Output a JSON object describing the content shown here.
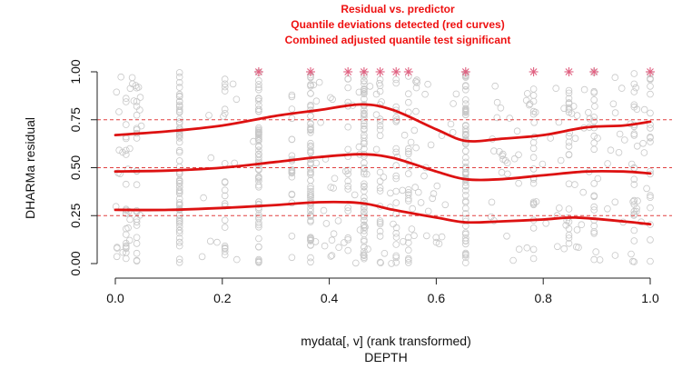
{
  "chart_data": {
    "type": "scatter",
    "title_lines": [
      "Residual vs. predictor",
      "Quantile deviations detected (red curves)",
      "Combined adjusted quantile test significant"
    ],
    "xlabel_lines": [
      "mydata[, v] (rank transformed)",
      "DEPTH"
    ],
    "ylabel": "DHARMa residual",
    "xlim": [
      0,
      1
    ],
    "ylim": [
      0,
      1
    ],
    "x_ticks": [
      "0.0",
      "0.2",
      "0.4",
      "0.6",
      "0.8",
      "1.0"
    ],
    "y_ticks": [
      "0.00",
      "0.25",
      "0.50",
      "0.75",
      "1.00"
    ],
    "reference_lines": [
      0.25,
      0.5,
      0.75
    ],
    "significant_x": [
      0.268,
      0.365,
      0.435,
      0.465,
      0.495,
      0.525,
      0.548,
      0.655,
      0.782,
      0.848,
      0.895,
      1.0
    ],
    "dense_columns_x": [
      0.12,
      0.268,
      0.365,
      0.465,
      0.655
    ],
    "medium_columns_x": [
      0.02,
      0.04,
      0.205,
      0.33,
      0.435,
      0.495,
      0.525,
      0.548,
      0.782,
      0.848,
      0.895,
      0.97,
      1.0
    ],
    "series": [
      {
        "quantile": 0.75,
        "x": [
          0.0,
          0.1,
          0.2,
          0.3,
          0.38,
          0.46,
          0.52,
          0.6,
          0.655,
          0.72,
          0.8,
          0.88,
          0.95,
          1.0
        ],
        "y": [
          0.67,
          0.69,
          0.72,
          0.77,
          0.8,
          0.83,
          0.8,
          0.7,
          0.64,
          0.65,
          0.67,
          0.71,
          0.72,
          0.74
        ]
      },
      {
        "quantile": 0.5,
        "x": [
          0.0,
          0.1,
          0.2,
          0.3,
          0.38,
          0.46,
          0.52,
          0.6,
          0.655,
          0.72,
          0.8,
          0.88,
          0.95,
          1.0
        ],
        "y": [
          0.48,
          0.485,
          0.5,
          0.53,
          0.555,
          0.57,
          0.55,
          0.48,
          0.44,
          0.44,
          0.46,
          0.48,
          0.48,
          0.47
        ]
      },
      {
        "quantile": 0.25,
        "x": [
          0.0,
          0.1,
          0.2,
          0.3,
          0.38,
          0.46,
          0.52,
          0.6,
          0.655,
          0.72,
          0.8,
          0.86,
          0.95,
          1.0
        ],
        "y": [
          0.28,
          0.28,
          0.29,
          0.305,
          0.32,
          0.315,
          0.28,
          0.24,
          0.215,
          0.22,
          0.23,
          0.24,
          0.22,
          0.205
        ]
      }
    ],
    "colors": {
      "curve": "#dd1111",
      "reference": "#e04040",
      "star": "#e06080",
      "points": "#c8c8c8",
      "axis": "#222222",
      "title": "#ee1111"
    }
  }
}
